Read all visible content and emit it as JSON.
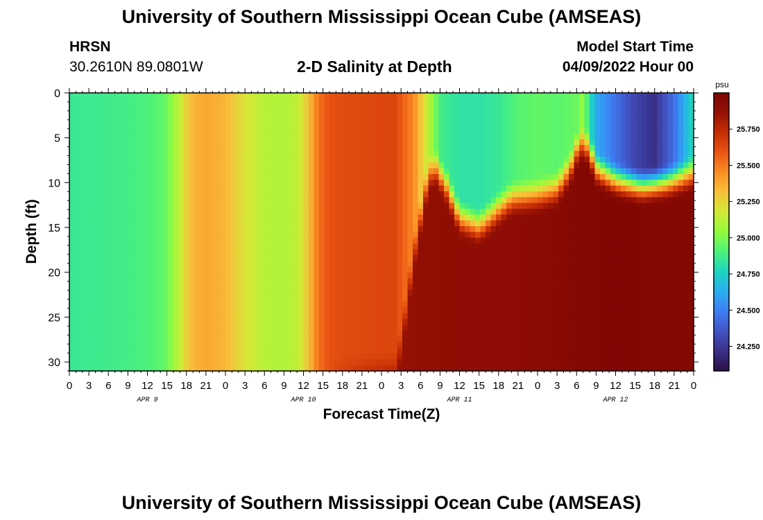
{
  "header": {
    "title": "University of Southern Mississippi Ocean Cube (AMSEAS)",
    "station": "HRSN",
    "coordinates": "30.2610N  89.0801W",
    "subtitle": "2-D Salinity at Depth",
    "model_start_label": "Model Start Time",
    "model_start_value": "04/09/2022 Hour 00"
  },
  "footer": {
    "title": "University of Southern Mississippi Ocean Cube (AMSEAS)"
  },
  "chart_data": {
    "type": "heatmap",
    "title": "2-D Salinity at Depth",
    "xlabel": "Forecast Time(Z)",
    "ylabel": "Depth (ft)",
    "x_range_hours": [
      0,
      96
    ],
    "y_range_ft": [
      0,
      31
    ],
    "x_ticks": [
      "0",
      "3",
      "6",
      "9",
      "12",
      "15",
      "18",
      "21",
      "0",
      "3",
      "6",
      "9",
      "12",
      "15",
      "18",
      "21",
      "0",
      "3",
      "6",
      "9",
      "12",
      "15",
      "18",
      "21",
      "0",
      "3",
      "6",
      "9",
      "12",
      "15",
      "18",
      "21",
      "0"
    ],
    "day_labels": [
      "APR 9",
      "APR 10",
      "APR 11",
      "APR 12"
    ],
    "y_ticks": [
      0,
      5,
      10,
      15,
      20,
      25,
      30
    ],
    "colorbar": {
      "unit": "psu",
      "range": [
        24.08,
        26.0
      ],
      "ticks": [
        "24.250",
        "24.500",
        "24.750",
        "25.000",
        "25.250",
        "25.500",
        "25.750"
      ],
      "colors": [
        "#2c0f46",
        "#3a2f87",
        "#4153c4",
        "#3f7ef5",
        "#2aaef0",
        "#1dd4c0",
        "#4cf27a",
        "#93fb3d",
        "#d1ea36",
        "#f7c03a",
        "#fb8f25",
        "#e95513",
        "#c52d04",
        "#961104",
        "#7a0403"
      ]
    },
    "surface_profile": {
      "hours": [
        0,
        3,
        6,
        9,
        12,
        14,
        15,
        16,
        17,
        18,
        19,
        21,
        24,
        27,
        30,
        33,
        35,
        36,
        37,
        38,
        39,
        40,
        42,
        45,
        48,
        50,
        51,
        53,
        54,
        57,
        60,
        63,
        66,
        69,
        72,
        75,
        78,
        79,
        80,
        81,
        84,
        87,
        90,
        93,
        96
      ],
      "salinity": [
        24.85,
        24.86,
        24.87,
        24.88,
        24.9,
        24.93,
        24.97,
        25.05,
        25.15,
        25.26,
        25.34,
        25.38,
        25.34,
        25.2,
        25.12,
        25.1,
        25.14,
        25.22,
        25.34,
        25.48,
        25.56,
        25.6,
        25.62,
        25.63,
        25.64,
        25.64,
        25.58,
        25.46,
        25.3,
        24.88,
        24.82,
        24.82,
        24.85,
        24.92,
        24.95,
        24.93,
        24.96,
        25.05,
        24.82,
        24.62,
        24.45,
        24.3,
        24.22,
        24.45,
        24.8
      ]
    },
    "deep_profile": {
      "hours": [
        0,
        12,
        14,
        15,
        16,
        17,
        18,
        19,
        21,
        24,
        27,
        30,
        33,
        35,
        36,
        37,
        38,
        39,
        40,
        42,
        44,
        46,
        48,
        50,
        54,
        60,
        66,
        72,
        80,
        84,
        90,
        96
      ],
      "salinity": [
        24.85,
        24.9,
        24.93,
        24.97,
        25.05,
        25.15,
        25.26,
        25.34,
        25.38,
        25.34,
        25.2,
        25.12,
        25.1,
        25.14,
        25.22,
        25.34,
        25.48,
        25.56,
        25.62,
        25.68,
        25.74,
        25.79,
        25.83,
        25.86,
        25.89,
        25.9,
        25.9,
        25.92,
        25.96,
        25.97,
        25.96,
        25.95
      ]
    },
    "halocline": {
      "hours": [
        0,
        50,
        51,
        53,
        55,
        56,
        58,
        60,
        63,
        66,
        68,
        72,
        75,
        77,
        78,
        79,
        80,
        81,
        84,
        88,
        92,
        96
      ],
      "depth_ft": [
        31,
        31,
        28,
        18,
        10,
        8,
        10.5,
        14,
        15,
        13,
        11.8,
        11.5,
        10.8,
        8.5,
        6.5,
        5.5,
        6.5,
        8.5,
        9.8,
        10.5,
        10,
        9
      ]
    }
  }
}
